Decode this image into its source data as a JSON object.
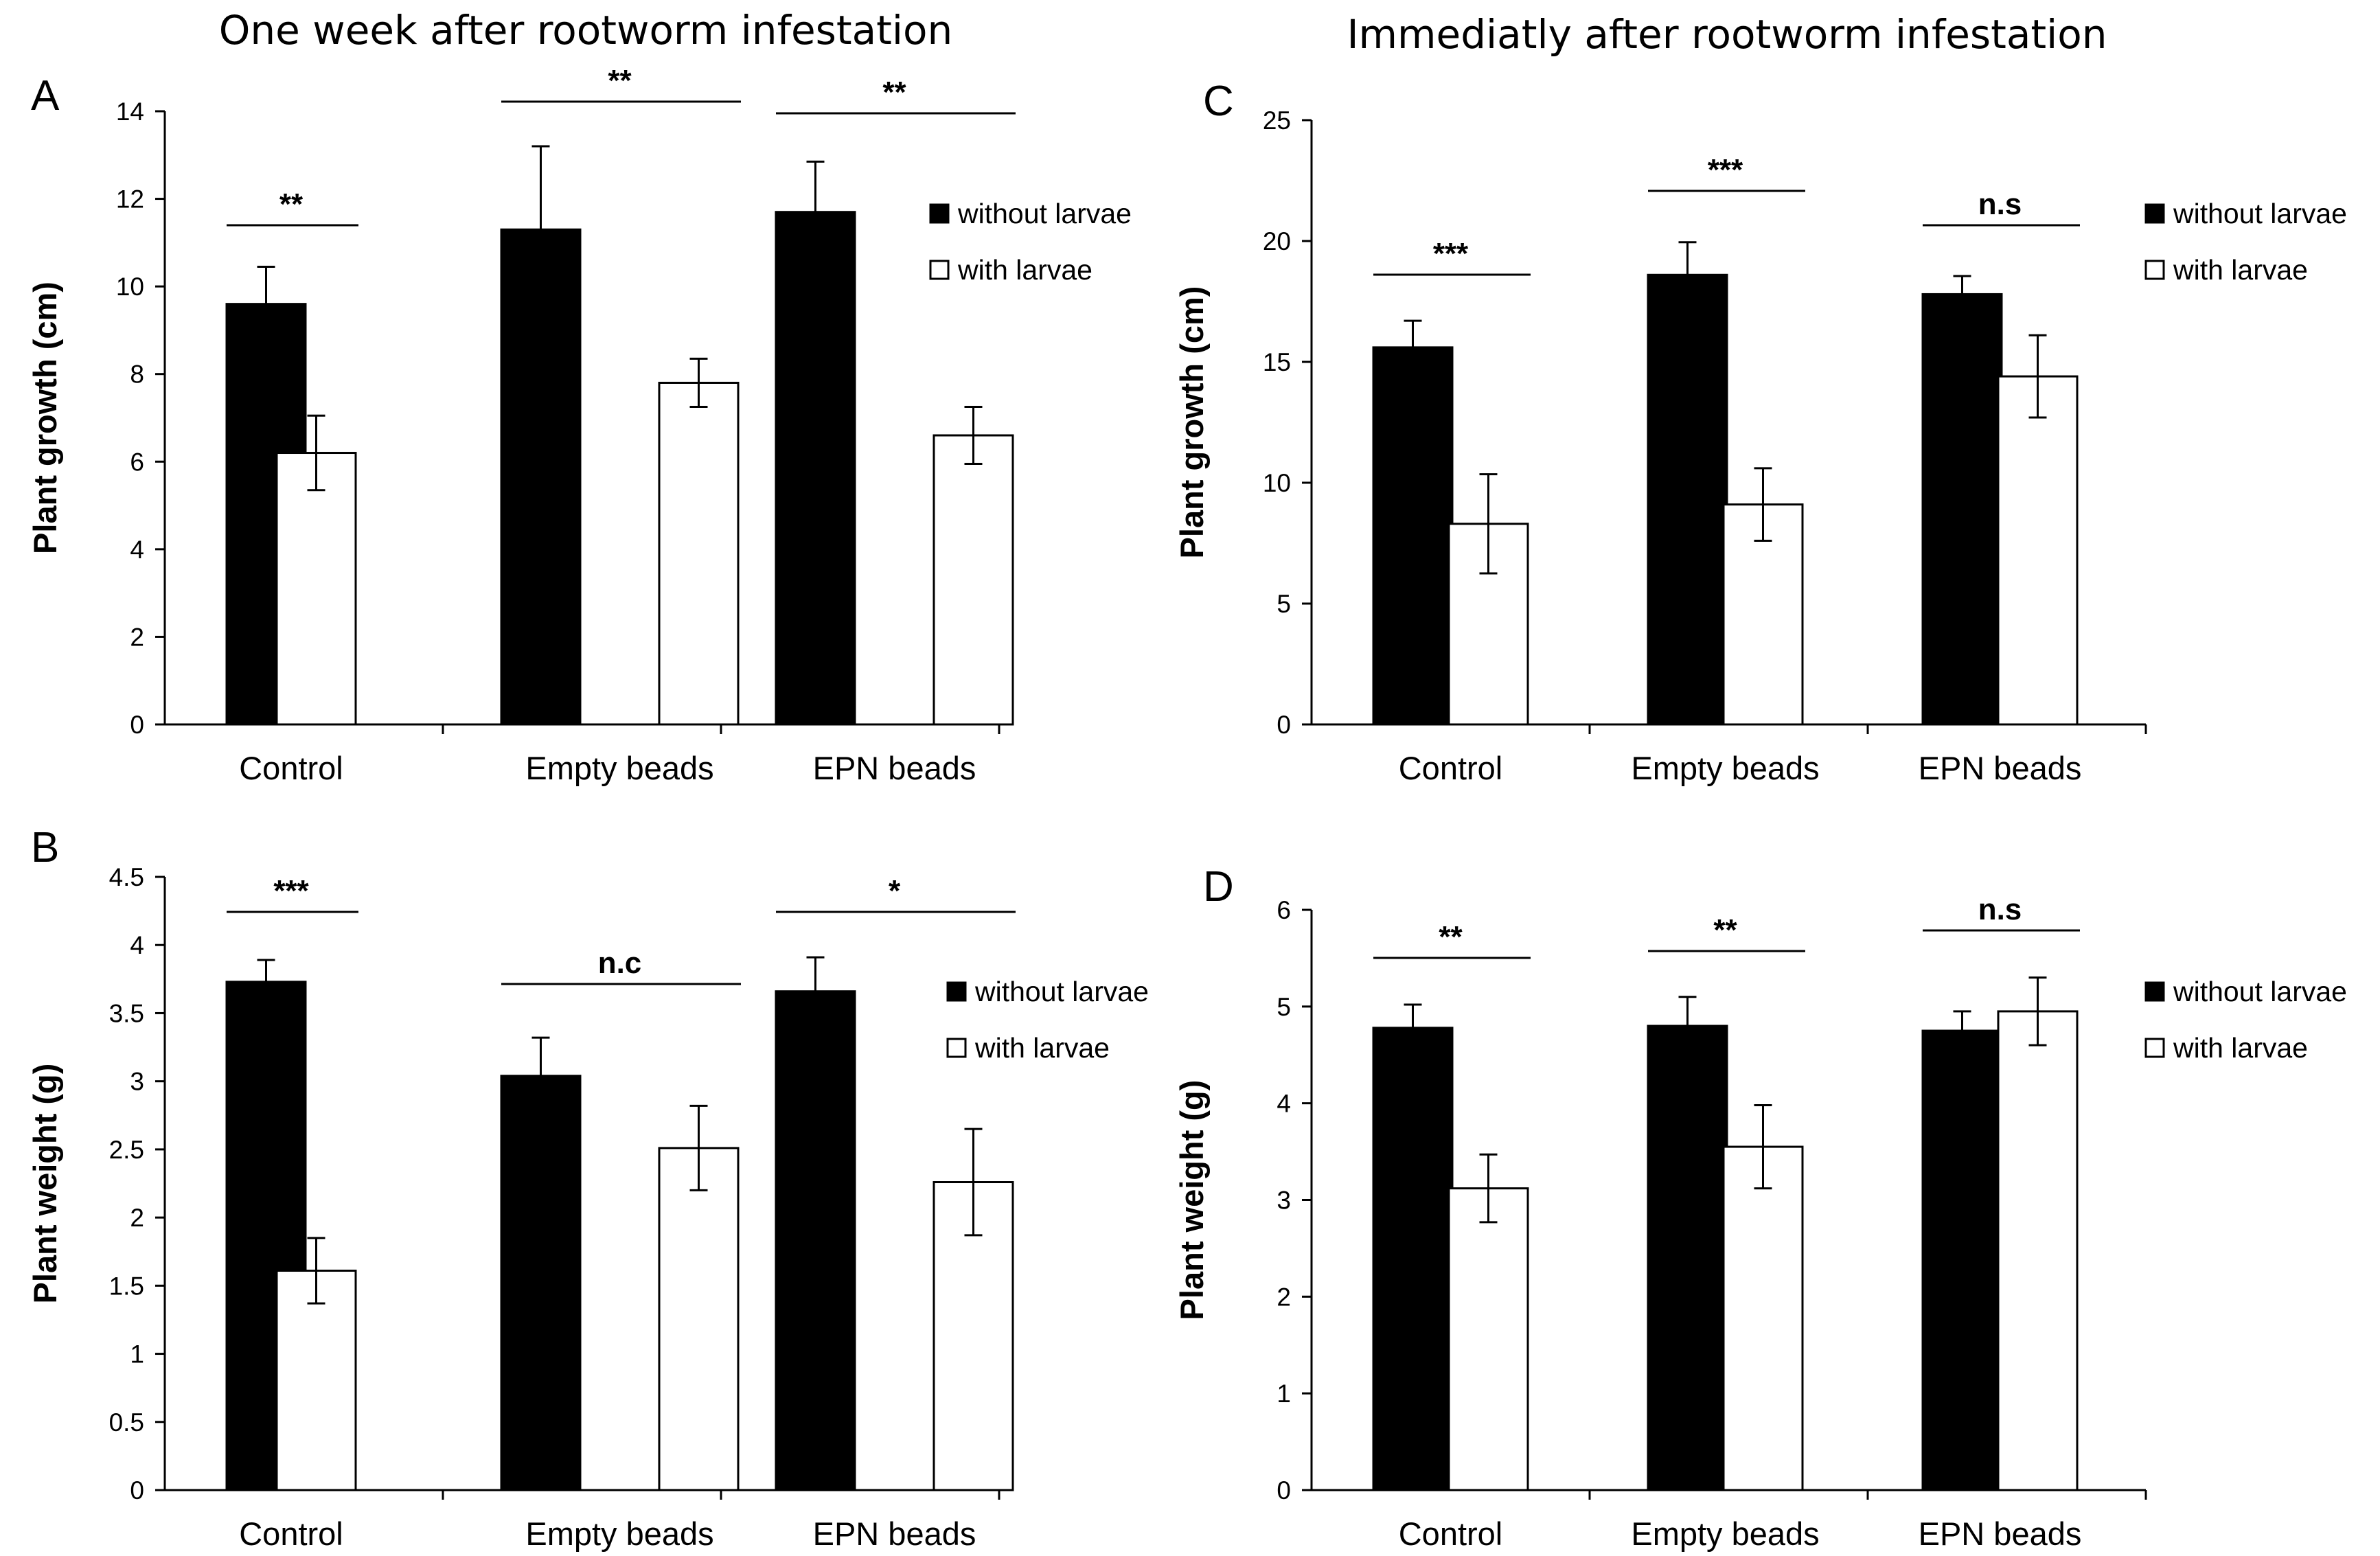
{
  "titles": {
    "left": "One week after rootworm infestation",
    "right": "Immediatly after rootworm infestation"
  },
  "colors": {
    "without_larvae": "#000000",
    "with_larvae": "#ffffff"
  },
  "chart_data": [
    {
      "panel": "A",
      "type": "bar",
      "title": "One week after rootworm infestation",
      "xlabel": "",
      "ylabel": "Plant growth (cm)",
      "ylim": [
        0,
        14
      ],
      "yticks": [
        0,
        2,
        4,
        6,
        8,
        10,
        12,
        14
      ],
      "categories": [
        "Control",
        "Empty beads",
        "EPN beads"
      ],
      "series": [
        {
          "name": "without larvae",
          "values": [
            9.6,
            11.3,
            11.7
          ],
          "errors": [
            0.85,
            1.9,
            1.15
          ]
        },
        {
          "name": "with larvae",
          "values": [
            6.2,
            7.8,
            6.6
          ],
          "errors": [
            0.85,
            0.55,
            0.65
          ]
        }
      ],
      "significance": [
        "**",
        "**",
        "**"
      ],
      "legend": "right"
    },
    {
      "panel": "B",
      "type": "bar",
      "title": "",
      "xlabel": "",
      "ylabel": "Plant weight (g)",
      "ylim": [
        0,
        4.5
      ],
      "yticks": [
        0,
        0.5,
        1,
        1.5,
        2,
        2.5,
        3,
        3.5,
        4,
        4.5
      ],
      "categories": [
        "Control",
        "Empty beads",
        "EPN beads"
      ],
      "series": [
        {
          "name": "without larvae",
          "values": [
            3.73,
            3.04,
            3.66
          ],
          "errors": [
            0.16,
            0.28,
            0.25
          ]
        },
        {
          "name": "with larvae",
          "values": [
            1.61,
            2.51,
            2.26
          ],
          "errors": [
            0.24,
            0.31,
            0.39
          ]
        }
      ],
      "significance": [
        "***",
        "n.c",
        "*"
      ],
      "legend": "right"
    },
    {
      "panel": "C",
      "type": "bar",
      "title": "Immediatly after rootworm infestation",
      "xlabel": "",
      "ylabel": "Plant growth (cm)",
      "ylim": [
        0,
        25
      ],
      "yticks": [
        0,
        5,
        10,
        15,
        20,
        25
      ],
      "categories": [
        "Control",
        "Empty beads",
        "EPN beads"
      ],
      "series": [
        {
          "name": "without larvae",
          "values": [
            15.6,
            18.6,
            17.8
          ],
          "errors": [
            1.1,
            1.35,
            0.75
          ]
        },
        {
          "name": "with larvae",
          "values": [
            8.3,
            9.1,
            14.4
          ],
          "errors": [
            2.05,
            1.5,
            1.7
          ]
        }
      ],
      "significance": [
        "***",
        "***",
        "n.s"
      ],
      "legend": "right"
    },
    {
      "panel": "D",
      "type": "bar",
      "title": "",
      "xlabel": "",
      "ylabel": "Plant weight (g)",
      "ylim": [
        0,
        6
      ],
      "yticks": [
        0,
        1,
        2,
        3,
        4,
        5,
        6
      ],
      "categories": [
        "Control",
        "Empty beads",
        "EPN beads"
      ],
      "series": [
        {
          "name": "without larvae",
          "values": [
            4.78,
            4.8,
            4.75
          ],
          "errors": [
            0.24,
            0.3,
            0.2
          ]
        },
        {
          "name": "with larvae",
          "values": [
            3.12,
            3.55,
            4.95
          ],
          "errors": [
            0.35,
            0.43,
            0.35
          ]
        }
      ],
      "significance": [
        "**",
        "**",
        "n.s"
      ],
      "legend": "right"
    }
  ]
}
